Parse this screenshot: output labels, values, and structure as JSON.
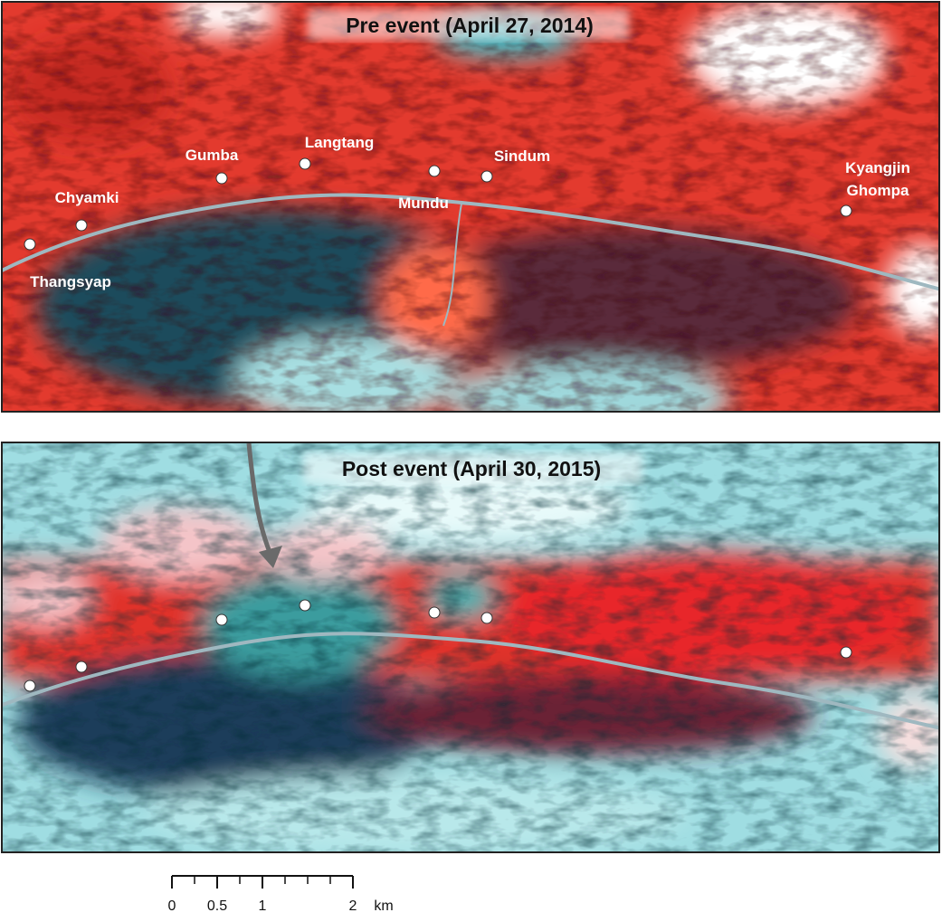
{
  "panels": [
    {
      "title": "Pre event (April 27, 2014)",
      "places": [
        "Thangsyap",
        "Chyamki",
        "Gumba",
        "Langtang",
        "Mundu",
        "Sindum",
        "Kyangjin",
        "Ghompa"
      ]
    },
    {
      "title": "Post event (April 30, 2015)"
    }
  ],
  "scale_bar": {
    "ticks": [
      0,
      0.5,
      1,
      2
    ],
    "unit": "km"
  }
}
